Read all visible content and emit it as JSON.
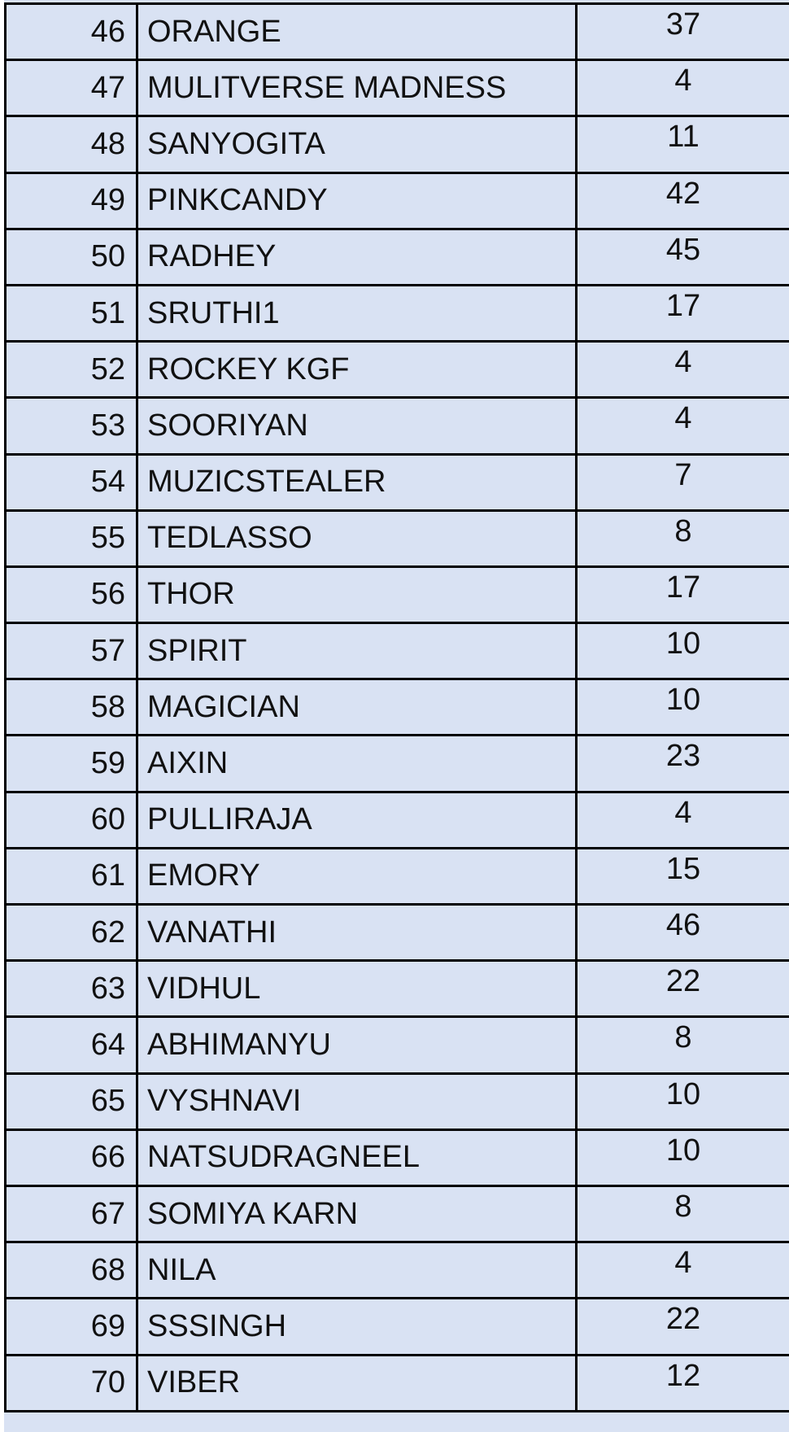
{
  "table": {
    "rows": [
      {
        "rank": "46",
        "name": "ORANGE",
        "value": "37"
      },
      {
        "rank": "47",
        "name": "MULITVERSE MADNESS",
        "value": "4"
      },
      {
        "rank": "48",
        "name": "SANYOGITA",
        "value": "11"
      },
      {
        "rank": "49",
        "name": "PINKCANDY",
        "value": "42"
      },
      {
        "rank": "50",
        "name": "RADHEY",
        "value": "45"
      },
      {
        "rank": "51",
        "name": "SRUTHI1",
        "value": "17"
      },
      {
        "rank": "52",
        "name": "ROCKEY KGF",
        "value": "4"
      },
      {
        "rank": "53",
        "name": "SOORIYAN",
        "value": "4"
      },
      {
        "rank": "54",
        "name": "MUZICSTEALER",
        "value": "7"
      },
      {
        "rank": "55",
        "name": "TEDLASSO",
        "value": "8"
      },
      {
        "rank": "56",
        "name": "THOR",
        "value": "17"
      },
      {
        "rank": "57",
        "name": "SPIRIT",
        "value": "10"
      },
      {
        "rank": "58",
        "name": "MAGICIAN",
        "value": "10"
      },
      {
        "rank": "59",
        "name": "AIXIN",
        "value": "23"
      },
      {
        "rank": "60",
        "name": "PULLIRAJA",
        "value": "4"
      },
      {
        "rank": "61",
        "name": "EMORY",
        "value": "15"
      },
      {
        "rank": "62",
        "name": "VANATHI",
        "value": "46"
      },
      {
        "rank": "63",
        "name": "VIDHUL",
        "value": "22"
      },
      {
        "rank": "64",
        "name": "ABHIMANYU",
        "value": "8"
      },
      {
        "rank": "65",
        "name": "VYSHNAVI",
        "value": "10"
      },
      {
        "rank": "66",
        "name": "NATSUDRAGNEEL",
        "value": "10"
      },
      {
        "rank": "67",
        "name": "SOMIYA KARN",
        "value": "8"
      },
      {
        "rank": "68",
        "name": "NILA",
        "value": "4"
      },
      {
        "rank": "69",
        "name": "SSSINGH",
        "value": "22"
      },
      {
        "rank": "70",
        "name": "VIBER",
        "value": "12"
      }
    ]
  },
  "colors": {
    "cell_fill": "#d9e2f3",
    "grid_line": "#000000",
    "text": "#111111",
    "page_background": "#ffffff",
    "left_edge_line": "#c8c8c8"
  }
}
